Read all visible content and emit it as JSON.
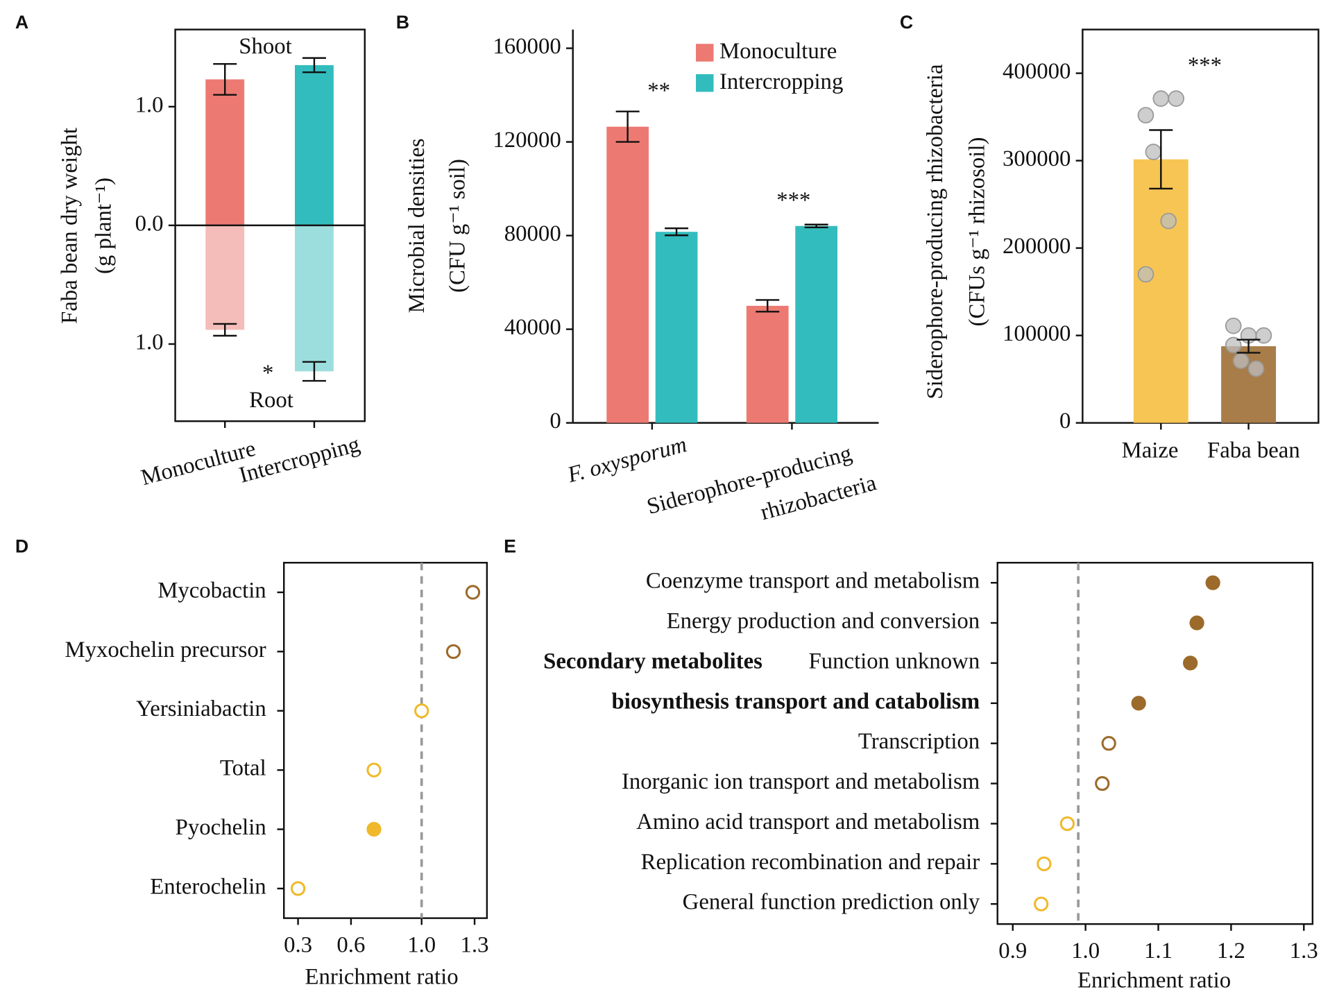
{
  "chart_data": [
    {
      "type": "bar",
      "panel_label": "A",
      "y_label": [
        "Faba bean dry weight",
        "(g plant⁻¹)"
      ],
      "categories": [
        "Monoculture",
        "Intercropping"
      ],
      "series": [
        {
          "name": "Shoot",
          "colors": [
            "#ec7a72",
            "#33bcbd"
          ],
          "values": [
            1.23,
            1.35
          ],
          "errors": [
            0.13,
            0.06
          ]
        },
        {
          "name": "Root",
          "colors": [
            "#f4bdb9",
            "#9cdedd"
          ],
          "values": [
            -0.88,
            -1.23
          ],
          "errors": [
            0.05,
            0.08
          ]
        }
      ],
      "ylim": [
        -1.65,
        1.65
      ],
      "yticks": [
        {
          "value": 1,
          "label": "1.0"
        },
        {
          "value": 0,
          "label": "0.0"
        },
        {
          "value": -1,
          "label": "1.0"
        }
      ],
      "zero_line": true,
      "annotations": [
        "*"
      ]
    },
    {
      "type": "bar",
      "panel_label": "B",
      "y_label": [
        "Microbial densities",
        "(CFU g⁻¹ soil)"
      ],
      "categories": [
        [
          "F. oxysporum"
        ],
        [
          "Siderophore-producing",
          "rhizobacteria"
        ]
      ],
      "series": [
        {
          "name": "Monoculture",
          "color": "#ec7a72",
          "values": [
            126500,
            50000
          ],
          "errors": [
            6500,
            2500
          ]
        },
        {
          "name": "Intercropping",
          "color": "#33bcbd",
          "values": [
            81600,
            84100
          ],
          "errors": [
            1500,
            600
          ]
        }
      ],
      "ylim": [
        0,
        168000
      ],
      "yticks": [
        0,
        40000,
        80000,
        120000,
        160000
      ],
      "legend": "top-right",
      "annotations": [
        "**",
        "***"
      ]
    },
    {
      "type": "bar",
      "panel_label": "C",
      "y_label": [
        "Siderophore-producing rhizobacteria",
        "(CFUs g⁻¹ rhizosoil)"
      ],
      "categories": [
        "Maize",
        "Faba bean"
      ],
      "colors": [
        "#f7c553",
        "#a87d4a"
      ],
      "values": [
        301500,
        87700
      ],
      "errors": [
        33500,
        7500
      ],
      "points": [
        [
          352000,
          371000,
          371000,
          310000,
          231000,
          170000
        ],
        [
          111000,
          100000,
          100000,
          71000,
          62000,
          89000
        ]
      ],
      "ylim": [
        0,
        450000
      ],
      "yticks": [
        0,
        100000,
        200000,
        300000,
        400000
      ],
      "annotations": [
        "***"
      ]
    },
    {
      "type": "dot",
      "panel_label": "D",
      "categories": [
        "Mycobactin",
        "Myxochelin precursor",
        "Yersiniabactin",
        "Total",
        "Pyochelin",
        "Enterochelin"
      ],
      "values": [
        1.29,
        1.18,
        1.0,
        0.73,
        0.73,
        0.3
      ],
      "colors": [
        "#9c6a2a",
        "#9c6a2a",
        "#f0b92b",
        "#f0b92b",
        "#f0b92b",
        "#f0b92b"
      ],
      "filled": [
        false,
        false,
        false,
        false,
        true,
        false
      ],
      "xlim": [
        0.22,
        1.37
      ],
      "xticks": [
        0.3,
        0.6,
        {
          "value": 1,
          "label": "1.0"
        },
        1.3
      ],
      "ref_line": 1.0,
      "x_label": "Enrichment ratio"
    },
    {
      "type": "dot",
      "panel_label": "E",
      "categories": [
        "Coenzyme transport and metabolism",
        "Energy production and conversion",
        "Function unknown",
        [
          "Secondary metabolites",
          "biosynthesis transport and catabolism"
        ],
        "Transcription",
        "Inorganic ion transport and metabolism",
        "Amino acid transport and metabolism",
        "Replication recombination and repair",
        "General function prediction only"
      ],
      "bold_category": 3,
      "values": [
        1.175,
        1.153,
        1.144,
        1.073,
        1.032,
        1.023,
        0.975,
        0.943,
        0.939
      ],
      "colors": [
        "#9c6a2a",
        "#9c6a2a",
        "#9c6a2a",
        "#9c6a2a",
        "#9c6a2a",
        "#9c6a2a",
        "#f0b92b",
        "#f0b92b",
        "#f0b92b"
      ],
      "filled": [
        true,
        true,
        true,
        true,
        false,
        false,
        false,
        false,
        false
      ],
      "xlim": [
        0.879,
        1.312
      ],
      "xticks": [
        0.9,
        {
          "value": 1,
          "label": "1.0"
        },
        1.1,
        1.2,
        1.3
      ],
      "ref_line": 0.99,
      "x_label": "Enrichment ratio"
    }
  ]
}
